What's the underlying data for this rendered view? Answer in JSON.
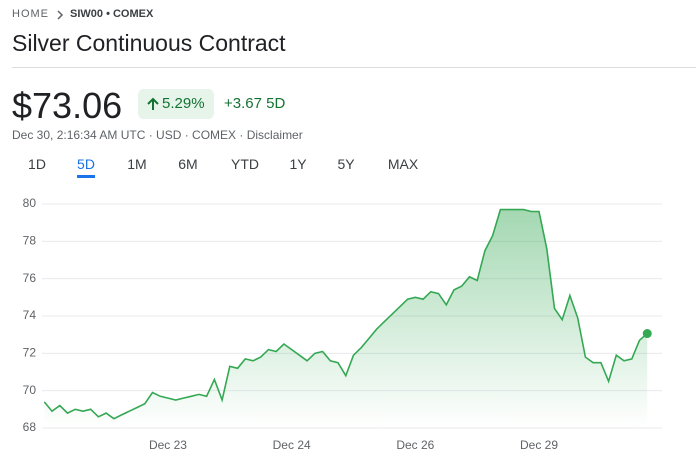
{
  "breadcrumb": {
    "home": "HOME",
    "symbol": "SIW00 • COMEX"
  },
  "header": {
    "title": "Silver Continuous Contract",
    "price": "$73.06",
    "change_percent": "5.29%",
    "change": "+3.67",
    "period": "5D",
    "details": "Dec 30, 2:16:34 AM UTC · USD · COMEX · Disclaimer"
  },
  "tabs": [
    "1D",
    "5D",
    "1M",
    "6M",
    "YTD",
    "1Y",
    "5Y",
    "MAX"
  ],
  "selected_tab": 1,
  "chart_data": {
    "type": "line",
    "fill": true,
    "color": "#34a853",
    "categories": [
      null,
      null,
      null,
      null,
      null,
      null,
      null,
      null,
      null,
      null,
      null,
      null,
      null,
      null,
      null,
      null,
      "Dec 23",
      null,
      null,
      null,
      null,
      null,
      null,
      null,
      null,
      null,
      null,
      null,
      null,
      null,
      null,
      null,
      "Dec 24",
      null,
      null,
      null,
      null,
      null,
      null,
      null,
      null,
      null,
      null,
      null,
      null,
      null,
      null,
      null,
      "Dec 26",
      null,
      null,
      null,
      null,
      null,
      null,
      null,
      null,
      null,
      null,
      null,
      null,
      null,
      null,
      null,
      "Dec 29",
      null,
      null,
      null,
      null,
      null,
      null,
      null,
      null,
      null,
      null,
      null,
      null,
      null,
      null
    ],
    "values": [
      69.4,
      68.9,
      69.2,
      68.8,
      69.0,
      68.9,
      69.0,
      68.6,
      68.8,
      68.5,
      68.7,
      68.9,
      69.1,
      69.3,
      69.9,
      69.7,
      69.6,
      69.5,
      69.6,
      69.7,
      69.8,
      69.7,
      70.6,
      69.5,
      71.3,
      71.2,
      71.7,
      71.6,
      71.8,
      72.2,
      72.1,
      72.5,
      72.2,
      71.9,
      71.6,
      72.0,
      72.1,
      71.6,
      71.5,
      70.8,
      71.9,
      72.3,
      72.8,
      73.3,
      73.7,
      74.1,
      74.5,
      74.9,
      75.0,
      74.9,
      75.3,
      75.2,
      74.6,
      75.4,
      75.6,
      76.1,
      75.9,
      77.5,
      78.3,
      79.7,
      79.7,
      79.7,
      79.7,
      79.6,
      79.6,
      77.6,
      74.4,
      73.8,
      75.1,
      73.9,
      71.8,
      71.5,
      71.5,
      70.5,
      71.9,
      71.6,
      71.7,
      72.7,
      73.06
    ],
    "ylim": [
      68,
      80
    ],
    "yticks": [
      68,
      70,
      72,
      74,
      76,
      78,
      80
    ],
    "grid": true
  }
}
